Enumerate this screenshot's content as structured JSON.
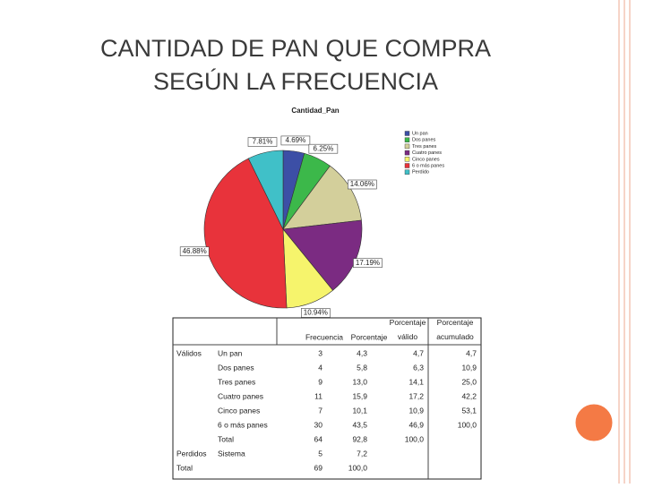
{
  "title": [
    "CANTIDAD DE PAN QUE COMPRA",
    "SEGÚN LA FRECUENCIA"
  ],
  "chart_data": {
    "type": "pie",
    "title": "Cantidad_Pan",
    "categories": [
      "Un pan",
      "Dos panes",
      "Tres panes",
      "Cuatro panes",
      "Cinco panes",
      "6 o más panes",
      "Perdido"
    ],
    "values": [
      4.69,
      6.25,
      14.06,
      17.19,
      10.94,
      46.88,
      7.81
    ],
    "value_labels": [
      "4.69%",
      "6.25%",
      "14.06%",
      "17.19%",
      "10.94%",
      "46.88%",
      "7.81%"
    ],
    "colors": [
      "#3c4fa6",
      "#3cb84a",
      "#d3cf9b",
      "#7b2b82",
      "#f6f46c",
      "#e8333b",
      "#40c0c8"
    ],
    "legend": "right"
  },
  "table": {
    "header": [
      "Frecuencia",
      "Porcentaje",
      "Porcentaje válido",
      "Porcentaje acumulado"
    ],
    "rows": [
      {
        "group": "Válidos",
        "label": "Un pan",
        "cells": [
          "3",
          "4,3",
          "4,7",
          "4,7"
        ]
      },
      {
        "label": "Dos panes",
        "cells": [
          "4",
          "5,8",
          "6,3",
          "10,9"
        ]
      },
      {
        "label": "Tres panes",
        "cells": [
          "9",
          "13,0",
          "14,1",
          "25,0"
        ]
      },
      {
        "label": "Cuatro panes",
        "cells": [
          "11",
          "15,9",
          "17,2",
          "42,2"
        ]
      },
      {
        "label": "Cinco panes",
        "cells": [
          "7",
          "10,1",
          "10,9",
          "53,1"
        ]
      },
      {
        "label": "6 o más panes",
        "cells": [
          "30",
          "43,5",
          "46,9",
          "100,0"
        ]
      },
      {
        "label": "Total",
        "cells": [
          "64",
          "92,8",
          "100,0"
        ]
      },
      {
        "group": "Perdidos",
        "label": "Sistema",
        "cells": [
          "5",
          "7,2"
        ]
      },
      {
        "group": "Total",
        "cells": [
          "69",
          "100,0"
        ]
      }
    ]
  }
}
